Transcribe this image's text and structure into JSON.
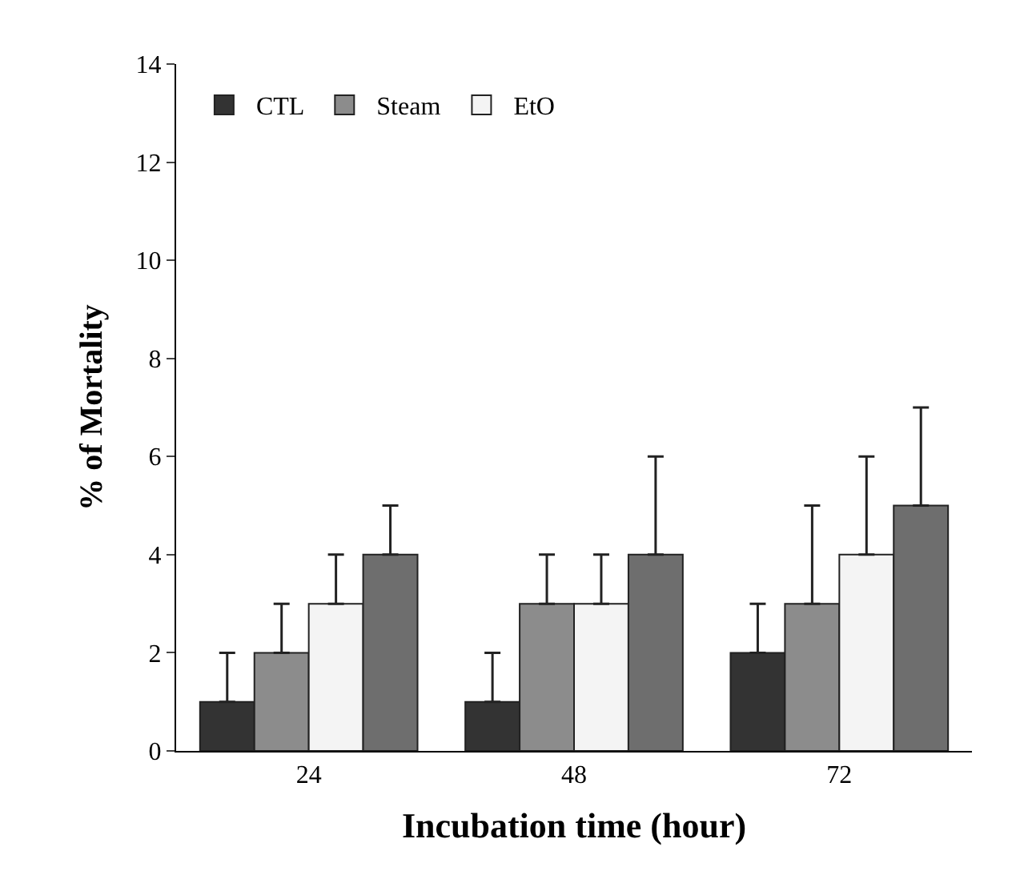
{
  "chart_data": {
    "type": "bar",
    "xlabel": "Incubation time (hour)",
    "ylabel": "% of Mortality",
    "categories": [
      "24",
      "48",
      "72"
    ],
    "series": [
      {
        "name": "CTL",
        "color": "#333333",
        "values": [
          1,
          1,
          2
        ],
        "errors": [
          [
            1,
            2
          ],
          [
            1,
            2
          ],
          [
            2,
            3
          ]
        ]
      },
      {
        "name": "Steam",
        "color": "#8c8c8c",
        "values": [
          2,
          3,
          3
        ],
        "errors": [
          [
            2,
            3
          ],
          [
            3,
            4
          ],
          [
            3,
            5
          ]
        ]
      },
      {
        "name": "EtO",
        "color": "#f4f4f4",
        "values": [
          3,
          3,
          4
        ],
        "errors": [
          [
            3,
            4
          ],
          [
            3,
            4
          ],
          [
            4,
            6
          ]
        ]
      },
      {
        "color": "#6e6e6e",
        "values": [
          4,
          4,
          5
        ],
        "errors": [
          [
            4,
            5
          ],
          [
            4,
            6
          ],
          [
            5,
            7
          ]
        ]
      }
    ],
    "ylim": [
      0,
      14
    ],
    "yticks": [
      0,
      2,
      4,
      6,
      8,
      10,
      12,
      14
    ],
    "legend": "top left"
  }
}
